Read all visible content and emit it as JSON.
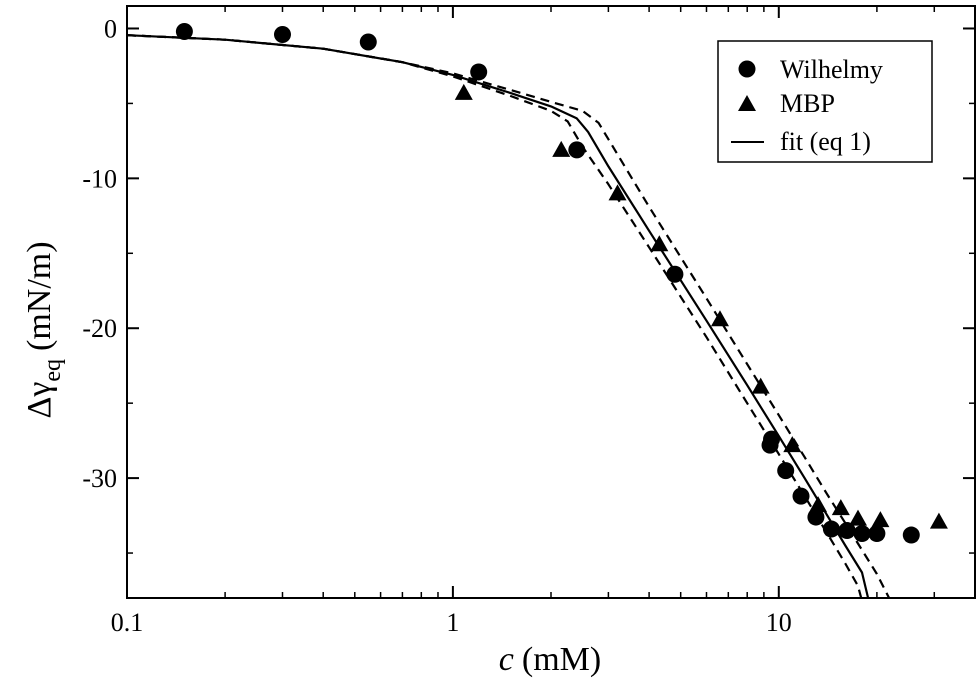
{
  "chart_data": {
    "type": "scatter",
    "xscale": "log",
    "xlim": [
      0.1,
      40
    ],
    "ylim": [
      -38,
      1.5
    ],
    "grid": false,
    "legend_position": "top-right",
    "xlabel_italic": "c",
    "xlabel_unit": "(mM)",
    "ylabel_main": "Δγ",
    "ylabel_sub": "eq",
    "ylabel_unit": "(mN/m)",
    "x_ticks": [
      {
        "value": 0.1,
        "label": "0.1"
      },
      {
        "value": 1,
        "label": "1"
      },
      {
        "value": 10,
        "label": "10"
      }
    ],
    "y_ticks": [
      {
        "value": 0,
        "label": "0"
      },
      {
        "value": -10,
        "label": "-10"
      },
      {
        "value": -20,
        "label": "-20"
      },
      {
        "value": -30,
        "label": "-30"
      }
    ],
    "legend": [
      {
        "label": "Wilhelmy",
        "marker": "circle"
      },
      {
        "label": "MBP",
        "marker": "triangle"
      },
      {
        "label": "fit (eq 1)",
        "marker": "line"
      }
    ],
    "series": [
      {
        "name": "Wilhelmy",
        "marker": "circle",
        "points": [
          [
            0.15,
            -0.2
          ],
          [
            0.3,
            -0.4
          ],
          [
            0.55,
            -0.9
          ],
          [
            1.2,
            -2.9
          ],
          [
            2.4,
            -8.1
          ],
          [
            4.8,
            -16.4
          ],
          [
            9.5,
            -27.4
          ],
          [
            9.4,
            -27.8
          ],
          [
            10.5,
            -29.5
          ],
          [
            11.7,
            -31.2
          ],
          [
            13.0,
            -32.6
          ],
          [
            14.5,
            -33.4
          ],
          [
            16.2,
            -33.5
          ],
          [
            18.0,
            -33.7
          ],
          [
            20.0,
            -33.7
          ],
          [
            25.5,
            -33.8
          ]
        ]
      },
      {
        "name": "MBP",
        "marker": "triangle",
        "points": [
          [
            1.08,
            -4.3
          ],
          [
            2.15,
            -8.1
          ],
          [
            3.2,
            -11.0
          ],
          [
            4.3,
            -14.4
          ],
          [
            6.6,
            -19.4
          ],
          [
            8.8,
            -23.9
          ],
          [
            11.0,
            -27.8
          ],
          [
            13.2,
            -31.8
          ],
          [
            15.5,
            -32.0
          ],
          [
            17.5,
            -32.7
          ],
          [
            20.5,
            -32.8
          ],
          [
            31.0,
            -32.9
          ]
        ]
      },
      {
        "name": "fit (eq 1)",
        "style": "solid",
        "points": [
          [
            0.1,
            -0.45
          ],
          [
            0.2,
            -0.75
          ],
          [
            0.4,
            -1.35
          ],
          [
            0.7,
            -2.25
          ],
          [
            1.0,
            -3.1
          ],
          [
            1.5,
            -4.3
          ],
          [
            2.0,
            -5.2
          ],
          [
            2.4,
            -6.0
          ],
          [
            2.6,
            -6.9
          ],
          [
            3.0,
            -9.2
          ],
          [
            4.0,
            -13.5
          ],
          [
            6.0,
            -19.5
          ],
          [
            8.0,
            -23.8
          ],
          [
            10.0,
            -27.2
          ],
          [
            12.0,
            -30.0
          ],
          [
            14.0,
            -32.4
          ],
          [
            16.0,
            -34.5
          ],
          [
            18.0,
            -36.3
          ],
          [
            18.8,
            -38.0
          ]
        ]
      },
      {
        "name": "",
        "style": "dashed",
        "points": [
          [
            0.1,
            -0.45
          ],
          [
            0.2,
            -0.75
          ],
          [
            0.4,
            -1.35
          ],
          [
            0.7,
            -2.25
          ],
          [
            1.0,
            -3.0
          ],
          [
            1.5,
            -4.1
          ],
          [
            2.0,
            -4.9
          ],
          [
            2.5,
            -5.5
          ],
          [
            2.8,
            -6.3
          ],
          [
            3.2,
            -8.4
          ],
          [
            4.0,
            -11.9
          ],
          [
            6.0,
            -18.0
          ],
          [
            8.0,
            -22.4
          ],
          [
            10.0,
            -25.8
          ],
          [
            12.0,
            -28.6
          ],
          [
            14.0,
            -31.0
          ],
          [
            16.0,
            -33.0
          ],
          [
            18.0,
            -34.8
          ],
          [
            20.0,
            -36.4
          ],
          [
            21.8,
            -38.0
          ]
        ]
      },
      {
        "name": "",
        "style": "dashed",
        "points": [
          [
            0.1,
            -0.45
          ],
          [
            0.2,
            -0.75
          ],
          [
            0.4,
            -1.35
          ],
          [
            0.7,
            -2.25
          ],
          [
            1.0,
            -3.2
          ],
          [
            1.5,
            -4.5
          ],
          [
            2.0,
            -5.5
          ],
          [
            2.25,
            -6.2
          ],
          [
            2.5,
            -7.9
          ],
          [
            3.0,
            -10.4
          ],
          [
            4.0,
            -14.6
          ],
          [
            6.0,
            -20.6
          ],
          [
            8.0,
            -25.0
          ],
          [
            10.0,
            -28.4
          ],
          [
            12.0,
            -31.2
          ],
          [
            14.0,
            -33.6
          ],
          [
            16.0,
            -35.7
          ],
          [
            17.5,
            -37.2
          ],
          [
            17.9,
            -38.0
          ]
        ]
      }
    ]
  }
}
